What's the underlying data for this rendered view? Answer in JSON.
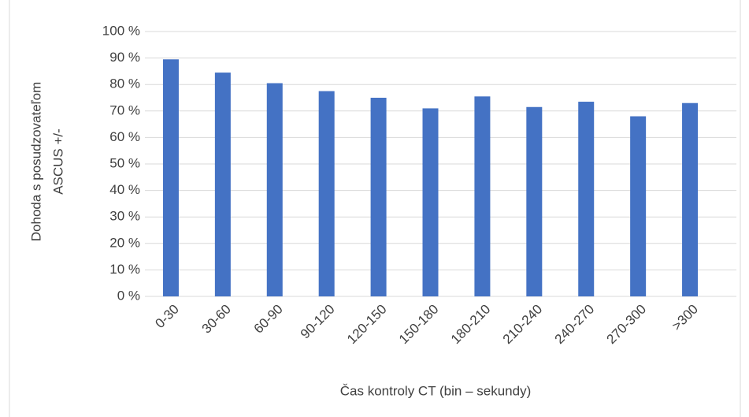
{
  "chart_data": {
    "type": "bar",
    "ylabel": [
      "Dohoda s posudzovateľom",
      "ASCUS +/-"
    ],
    "xlabel": "Čas kontroly CT (bin – sekundy)",
    "categories": [
      "0-30",
      "30-60",
      "60-90",
      "90-120",
      "120-150",
      "150-180",
      "180-210",
      "210-240",
      "240-270",
      "270-300",
      ">300"
    ],
    "values": [
      89.5,
      84.5,
      80.5,
      77.5,
      75,
      71,
      75.5,
      71.5,
      73.5,
      68,
      73
    ],
    "color": "#4472c4",
    "ylim": [
      0,
      100
    ],
    "yticks": [
      {
        "value": 0,
        "label": "0 %"
      },
      {
        "value": 10,
        "label": "10 %"
      },
      {
        "value": 20,
        "label": "20 %"
      },
      {
        "value": 30,
        "label": "30 %"
      },
      {
        "value": 40,
        "label": "40 %"
      },
      {
        "value": 50,
        "label": "50 %"
      },
      {
        "value": 60,
        "label": "60 %"
      },
      {
        "value": 70,
        "label": "70 %"
      },
      {
        "value": 80,
        "label": "80 %"
      },
      {
        "value": 90,
        "label": "90 %"
      },
      {
        "value": 100,
        "label": "100 %"
      }
    ],
    "grid": true
  }
}
